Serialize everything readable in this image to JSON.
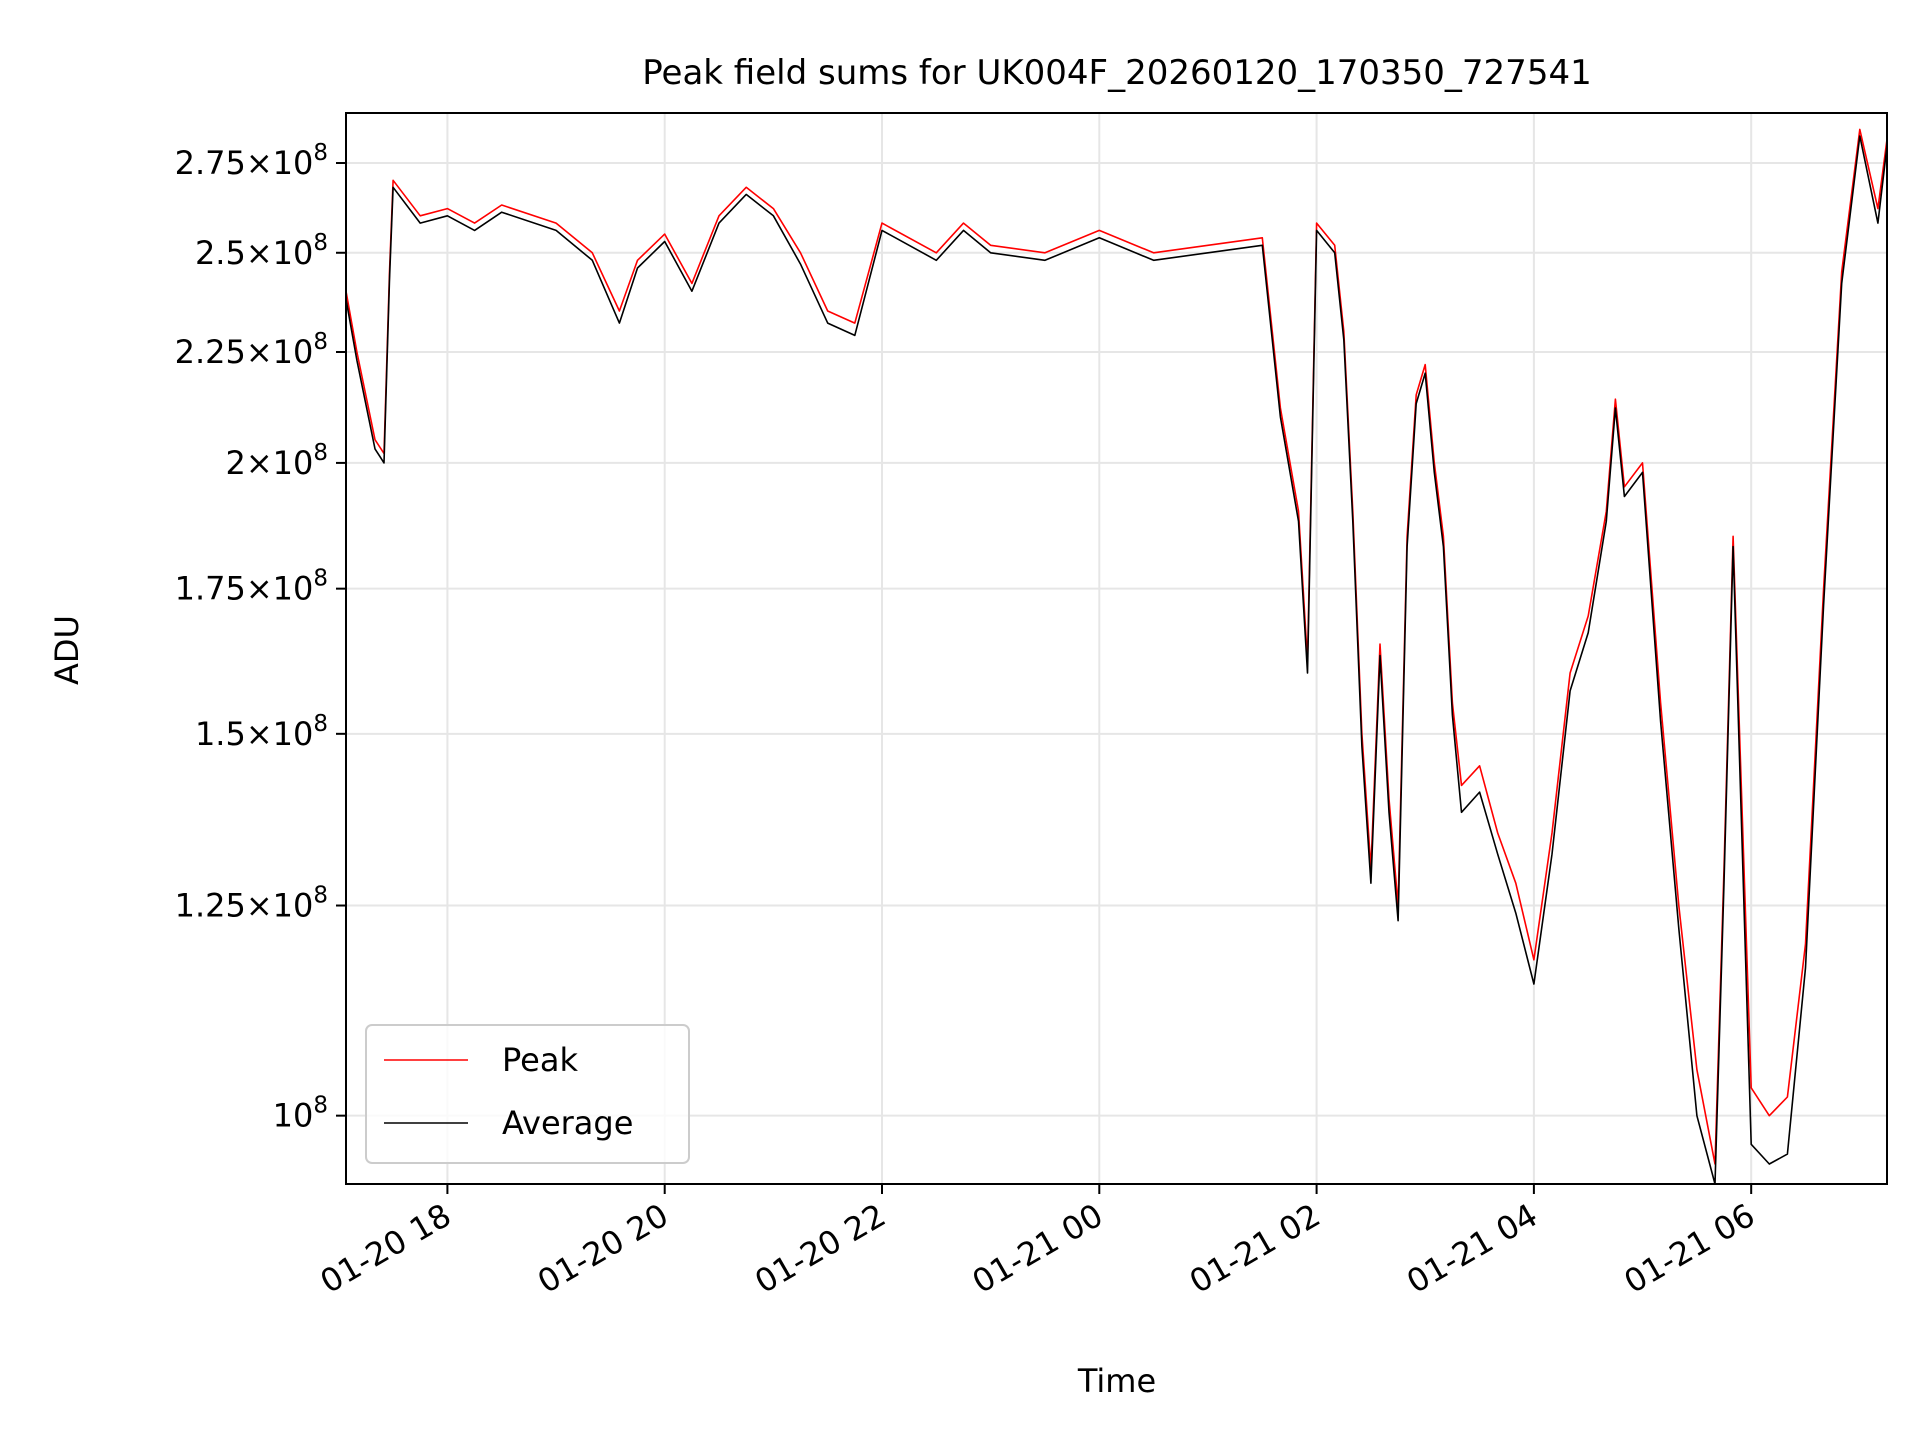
{
  "chart_data": {
    "type": "line",
    "title": "Peak field sums for UK004F_20260120_170350_727541",
    "xlabel": "Time",
    "ylabel": "ADU",
    "yscale": "log",
    "xlim": [
      "2026-01-20T17:04",
      "2026-01-21T07:15"
    ],
    "ylim": [
      93000000,
      290000000
    ],
    "grid": true,
    "legend_position": "lower-left",
    "x_ticks": [
      {
        "t": "2026-01-20T18:00",
        "label": "01-20 18"
      },
      {
        "t": "2026-01-20T20:00",
        "label": "01-20 20"
      },
      {
        "t": "2026-01-20T22:00",
        "label": "01-20 22"
      },
      {
        "t": "2026-01-21T00:00",
        "label": "01-21 00"
      },
      {
        "t": "2026-01-21T02:00",
        "label": "01-21 02"
      },
      {
        "t": "2026-01-21T04:00",
        "label": "01-21 04"
      },
      {
        "t": "2026-01-21T06:00",
        "label": "01-21 06"
      }
    ],
    "y_ticks": [
      {
        "v": 100000000,
        "mant": "",
        "exp": "8"
      },
      {
        "v": 125000000,
        "mant": "1.25",
        "exp": "8"
      },
      {
        "v": 150000000,
        "mant": "1.5",
        "exp": "8"
      },
      {
        "v": 175000000,
        "mant": "1.75",
        "exp": "8"
      },
      {
        "v": 200000000,
        "mant": "2",
        "exp": "8"
      },
      {
        "v": 225000000,
        "mant": "2.25",
        "exp": "8"
      },
      {
        "v": 250000000,
        "mant": "2.5",
        "exp": "8"
      },
      {
        "v": 275000000,
        "mant": "2.75",
        "exp": "8"
      }
    ],
    "series": [
      {
        "name": "Peak",
        "color": "#ff0000",
        "x": [
          "2026-01-20T17:04",
          "2026-01-20T17:10",
          "2026-01-20T17:20",
          "2026-01-20T17:25",
          "2026-01-20T17:28",
          "2026-01-20T17:30",
          "2026-01-20T17:45",
          "2026-01-20T18:00",
          "2026-01-20T18:15",
          "2026-01-20T18:30",
          "2026-01-20T19:00",
          "2026-01-20T19:20",
          "2026-01-20T19:35",
          "2026-01-20T19:45",
          "2026-01-20T20:00",
          "2026-01-20T20:15",
          "2026-01-20T20:30",
          "2026-01-20T20:45",
          "2026-01-20T21:00",
          "2026-01-20T21:15",
          "2026-01-20T21:30",
          "2026-01-20T21:45",
          "2026-01-20T22:00",
          "2026-01-20T22:30",
          "2026-01-20T22:45",
          "2026-01-20T23:00",
          "2026-01-20T23:30",
          "2026-01-21T00:00",
          "2026-01-21T00:30",
          "2026-01-21T01:00",
          "2026-01-21T01:30",
          "2026-01-21T01:40",
          "2026-01-21T01:50",
          "2026-01-21T01:55",
          "2026-01-21T02:00",
          "2026-01-21T02:10",
          "2026-01-21T02:15",
          "2026-01-21T02:20",
          "2026-01-21T02:25",
          "2026-01-21T02:30",
          "2026-01-21T02:35",
          "2026-01-21T02:40",
          "2026-01-21T02:45",
          "2026-01-21T02:50",
          "2026-01-21T02:55",
          "2026-01-21T03:00",
          "2026-01-21T03:05",
          "2026-01-21T03:10",
          "2026-01-21T03:15",
          "2026-01-21T03:20",
          "2026-01-21T03:30",
          "2026-01-21T03:40",
          "2026-01-21T03:50",
          "2026-01-21T04:00",
          "2026-01-21T04:10",
          "2026-01-21T04:20",
          "2026-01-21T04:30",
          "2026-01-21T04:40",
          "2026-01-21T04:45",
          "2026-01-21T04:50",
          "2026-01-21T05:00",
          "2026-01-21T05:10",
          "2026-01-21T05:20",
          "2026-01-21T05:30",
          "2026-01-21T05:40",
          "2026-01-21T05:45",
          "2026-01-21T05:50",
          "2026-01-21T06:00",
          "2026-01-21T06:10",
          "2026-01-21T06:20",
          "2026-01-21T06:30",
          "2026-01-21T06:40",
          "2026-01-21T06:50",
          "2026-01-21T07:00",
          "2026-01-21T07:10",
          "2026-01-21T07:15"
        ],
        "values": [
          240000000,
          225000000,
          205000000,
          202000000,
          245000000,
          270000000,
          260000000,
          262000000,
          258000000,
          263000000,
          258000000,
          250000000,
          235000000,
          248000000,
          255000000,
          242000000,
          260000000,
          268000000,
          262000000,
          250000000,
          235000000,
          232000000,
          258000000,
          250000000,
          258000000,
          252000000,
          250000000,
          256000000,
          250000000,
          252000000,
          254000000,
          212000000,
          190000000,
          162000000,
          258000000,
          252000000,
          230000000,
          190000000,
          150000000,
          130000000,
          165000000,
          140000000,
          125000000,
          185000000,
          215000000,
          222000000,
          200000000,
          185000000,
          155000000,
          142000000,
          145000000,
          135000000,
          128000000,
          118000000,
          135000000,
          160000000,
          170000000,
          190000000,
          214000000,
          195000000,
          200000000,
          155000000,
          125000000,
          105000000,
          95000000,
          130000000,
          185000000,
          103000000,
          100000000,
          102000000,
          120000000,
          175000000,
          245000000,
          285000000,
          262000000,
          282000000
        ]
      },
      {
        "name": "Average",
        "color": "#000000",
        "x": [
          "2026-01-20T17:04",
          "2026-01-20T17:10",
          "2026-01-20T17:20",
          "2026-01-20T17:25",
          "2026-01-20T17:28",
          "2026-01-20T17:30",
          "2026-01-20T17:45",
          "2026-01-20T18:00",
          "2026-01-20T18:15",
          "2026-01-20T18:30",
          "2026-01-20T19:00",
          "2026-01-20T19:20",
          "2026-01-20T19:35",
          "2026-01-20T19:45",
          "2026-01-20T20:00",
          "2026-01-20T20:15",
          "2026-01-20T20:30",
          "2026-01-20T20:45",
          "2026-01-20T21:00",
          "2026-01-20T21:15",
          "2026-01-20T21:30",
          "2026-01-20T21:45",
          "2026-01-20T22:00",
          "2026-01-20T22:30",
          "2026-01-20T22:45",
          "2026-01-20T23:00",
          "2026-01-20T23:30",
          "2026-01-21T00:00",
          "2026-01-21T00:30",
          "2026-01-21T01:00",
          "2026-01-21T01:30",
          "2026-01-21T01:40",
          "2026-01-21T01:50",
          "2026-01-21T01:55",
          "2026-01-21T02:00",
          "2026-01-21T02:10",
          "2026-01-21T02:15",
          "2026-01-21T02:20",
          "2026-01-21T02:25",
          "2026-01-21T02:30",
          "2026-01-21T02:35",
          "2026-01-21T02:40",
          "2026-01-21T02:45",
          "2026-01-21T02:50",
          "2026-01-21T02:55",
          "2026-01-21T03:00",
          "2026-01-21T03:05",
          "2026-01-21T03:10",
          "2026-01-21T03:15",
          "2026-01-21T03:20",
          "2026-01-21T03:30",
          "2026-01-21T03:40",
          "2026-01-21T03:50",
          "2026-01-21T04:00",
          "2026-01-21T04:10",
          "2026-01-21T04:20",
          "2026-01-21T04:30",
          "2026-01-21T04:40",
          "2026-01-21T04:45",
          "2026-01-21T04:50",
          "2026-01-21T05:00",
          "2026-01-21T05:10",
          "2026-01-21T05:20",
          "2026-01-21T05:30",
          "2026-01-21T05:40",
          "2026-01-21T05:45",
          "2026-01-21T05:50",
          "2026-01-21T06:00",
          "2026-01-21T06:10",
          "2026-01-21T06:20",
          "2026-01-21T06:30",
          "2026-01-21T06:40",
          "2026-01-21T06:50",
          "2026-01-21T07:00",
          "2026-01-21T07:10",
          "2026-01-21T07:15"
        ],
        "values": [
          238000000,
          223000000,
          203000000,
          200000000,
          243000000,
          268000000,
          258000000,
          260000000,
          256000000,
          261000000,
          256000000,
          248000000,
          232000000,
          246000000,
          253000000,
          240000000,
          258000000,
          266000000,
          260000000,
          247000000,
          232000000,
          229000000,
          256000000,
          248000000,
          256000000,
          250000000,
          248000000,
          254000000,
          248000000,
          250000000,
          252000000,
          210000000,
          188000000,
          160000000,
          256000000,
          250000000,
          228000000,
          188000000,
          148000000,
          128000000,
          163000000,
          138000000,
          123000000,
          183000000,
          213000000,
          220000000,
          198000000,
          183000000,
          153000000,
          138000000,
          141000000,
          132000000,
          124000000,
          115000000,
          132000000,
          157000000,
          167000000,
          188000000,
          212000000,
          193000000,
          198000000,
          152000000,
          122000000,
          100000000,
          93000000,
          128000000,
          183000000,
          97000000,
          95000000,
          96000000,
          117000000,
          172000000,
          242000000,
          283000000,
          258000000,
          280000000
        ]
      }
    ]
  }
}
